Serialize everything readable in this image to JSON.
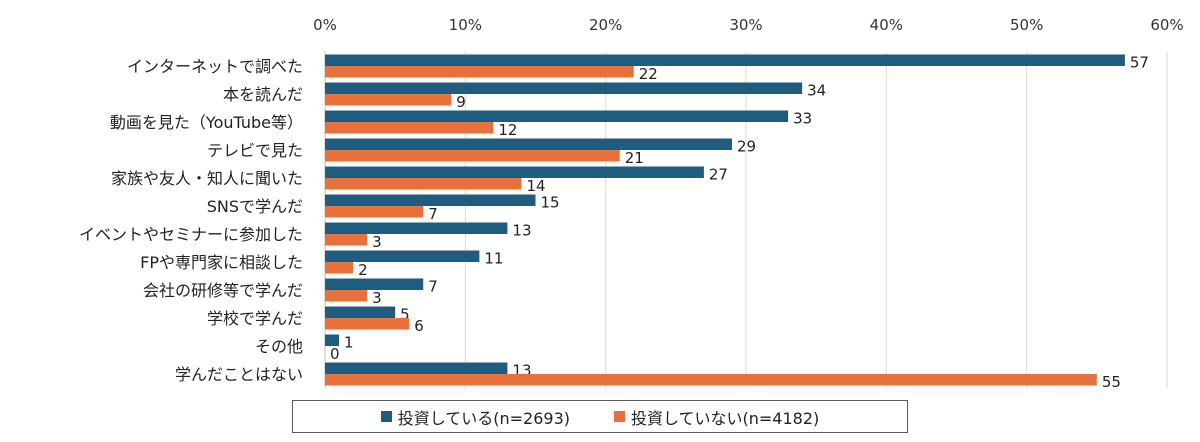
{
  "chart_data": {
    "type": "bar",
    "orientation": "horizontal",
    "categories": [
      "インターネットで調べた",
      "本を読んだ",
      "動画を見た（YouTube等）",
      "テレビで見た",
      "家族や友人・知人に聞いた",
      "SNSで学んだ",
      "イベントやセミナーに参加した",
      "FPや専門家に相談した",
      "会社の研修等で学んだ",
      "学校で学んだ",
      "その他",
      "学んだことはない"
    ],
    "series": [
      {
        "name": "投資している(n=2693)",
        "color": "#1f5c80",
        "values": [
          57,
          34,
          33,
          29,
          27,
          15,
          13,
          11,
          7,
          5,
          1,
          13
        ]
      },
      {
        "name": "投資していない(n=4182)",
        "color": "#e8703a",
        "values": [
          22,
          9,
          12,
          21,
          14,
          7,
          3,
          2,
          3,
          6,
          0,
          55
        ]
      }
    ],
    "x_ticks": [
      "0%",
      "10%",
      "20%",
      "30%",
      "40%",
      "50%",
      "60%"
    ],
    "xlim": [
      0,
      60
    ],
    "grid": true,
    "legend_position": "bottom"
  }
}
